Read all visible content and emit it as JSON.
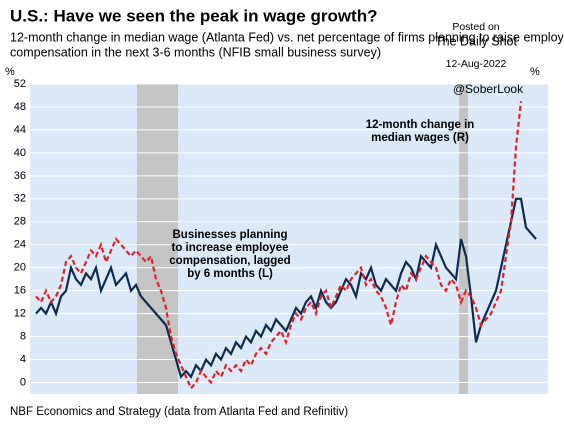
{
  "chart_data": {
    "type": "line",
    "title": "U.S.: Have we seen the peak in wage growth?",
    "subtitle": [
      "12-month change in median wage (Atlanta Fed) vs. net percentage of firms planning to raise employee",
      "compensation in the next 3-6 months (NFIB small business survey)"
    ],
    "y_label": "%",
    "y2_label": "%",
    "source": "NBF Economics and Strategy (data from Atlanta Fed and Refinitiv)",
    "watermark": [
      "Posted on",
      "The Daily Shot",
      "12-Aug-2022"
    ],
    "handle": "@SoberLook",
    "ylim": [
      -2,
      52
    ],
    "yticks": [
      0,
      4,
      8,
      12,
      16,
      20,
      24,
      28,
      32,
      36,
      40,
      44,
      48,
      52
    ],
    "grid": true,
    "shaded_regions": [
      [
        20.2,
        28.4
      ],
      [
        84.6,
        86.4
      ]
    ],
    "series": [
      {
        "name": [
          "Businesses planning",
          "to increase employee",
          "compensation, lagged",
          "by 6 months (L)"
        ],
        "color": "#0d2b4e",
        "values": [
          12,
          13,
          12,
          14,
          12,
          15,
          16,
          20,
          18,
          17,
          19,
          18,
          20,
          16,
          18,
          20,
          17,
          18,
          19,
          16,
          17,
          15,
          14,
          13,
          12,
          11,
          10,
          7,
          4,
          1,
          2,
          1,
          3,
          2,
          4,
          3,
          5,
          4,
          6,
          5,
          7,
          6,
          8,
          7,
          9,
          8,
          10,
          9,
          11,
          10,
          9,
          11,
          13,
          12,
          14,
          15,
          13,
          16,
          14,
          13,
          14,
          16,
          18,
          17,
          15,
          19,
          18,
          20,
          17,
          16,
          18,
          17,
          16,
          19,
          21,
          20,
          18,
          22,
          21,
          20,
          24,
          22,
          20,
          19,
          18,
          25,
          22,
          15,
          7,
          10,
          12,
          14,
          16,
          20,
          24,
          28,
          32,
          32,
          27,
          26,
          25
        ]
      },
      {
        "name": [
          "12-month change in",
          "median wages (R)"
        ],
        "color": "#e0202a",
        "values": [
          15,
          14,
          16,
          14,
          15,
          17,
          21,
          22,
          20,
          19,
          21,
          23,
          22,
          24,
          21,
          23,
          25,
          24,
          23,
          22,
          23,
          22,
          21,
          22,
          18,
          16,
          13,
          8,
          5,
          3,
          1,
          -1,
          0,
          2,
          1,
          0,
          2,
          1,
          3,
          2,
          3,
          2,
          4,
          3,
          5,
          6,
          5,
          7,
          8,
          9,
          7,
          10,
          12,
          11,
          13,
          14,
          12,
          15,
          16,
          13,
          15,
          17,
          16,
          18,
          19,
          20,
          17,
          18,
          16,
          15,
          13,
          10,
          14,
          17,
          16,
          19,
          18,
          20,
          22,
          21,
          20,
          17,
          16,
          18,
          17,
          14,
          16,
          15,
          13,
          10,
          11,
          12,
          14,
          16,
          22,
          28,
          41,
          49,
          null,
          null,
          null
        ]
      }
    ]
  }
}
